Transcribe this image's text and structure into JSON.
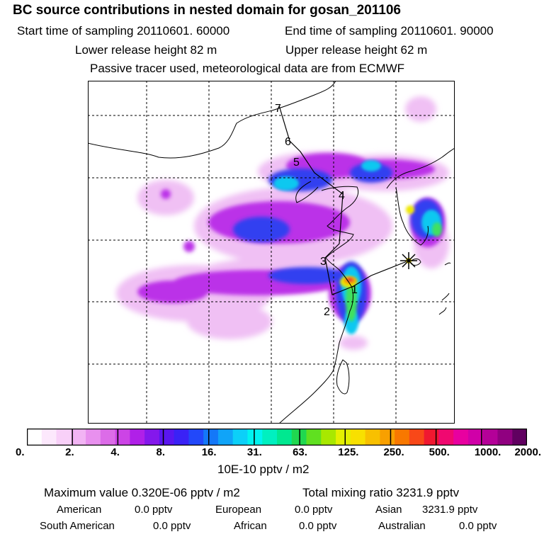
{
  "header": {
    "title": "BC  source contributions in nested domain for gosan_201106",
    "start_time": "Start time of sampling 20110601. 60000",
    "end_time": "End time of sampling 20110601. 90000",
    "lower_release": "Lower release height   82 m",
    "upper_release": "Upper release height   62 m",
    "tracer_note": "Passive tracer used, meteorological data are from ECMWF"
  },
  "map": {
    "trajectory_labels": [
      "1",
      "2",
      "3",
      "4",
      "5",
      "6",
      "7"
    ],
    "receptor_marker": "star-marker"
  },
  "colorbar": {
    "tick_labels": [
      "0.",
      "2.",
      "4.",
      "8.",
      "16.",
      "31.",
      "63.",
      "125.",
      "250.",
      "500.",
      "1000.",
      "2000."
    ],
    "units": "10E-10 pptv / m2",
    "colors": [
      "#ffffff",
      "#fce8fc",
      "#f8d0f8",
      "#f2b4f4",
      "#e890ee",
      "#dc6ce8",
      "#cc44e6",
      "#b020e8",
      "#8418ec",
      "#5a16f0",
      "#3a22f6",
      "#2248fa",
      "#1478f8",
      "#10a4f8",
      "#0cd0f8",
      "#00f4f0",
      "#00f0c0",
      "#00e890",
      "#20d850",
      "#60e020",
      "#a8e800",
      "#e4f000",
      "#f8e000",
      "#f8c000",
      "#f8a000",
      "#f87800",
      "#f84818",
      "#f01830",
      "#f00870",
      "#e800a0",
      "#d000a8",
      "#b40098",
      "#900080",
      "#600060"
    ]
  },
  "stats": {
    "max_value": "Maximum value  0.320E-06 pptv / m2",
    "total_mixing": "Total mixing ratio     3231.9 pptv",
    "american_label": "American",
    "american_value": "0.0 pptv",
    "european_label": "European",
    "european_value": "0.0 pptv",
    "asian_label": "Asian",
    "asian_value": "3231.9 pptv",
    "southamerican_label": "South American",
    "southamerican_value": "0.0 pptv",
    "african_label": "African",
    "african_value": "0.0 pptv",
    "australian_label": "Australian",
    "australian_value": "0.0 pptv"
  }
}
